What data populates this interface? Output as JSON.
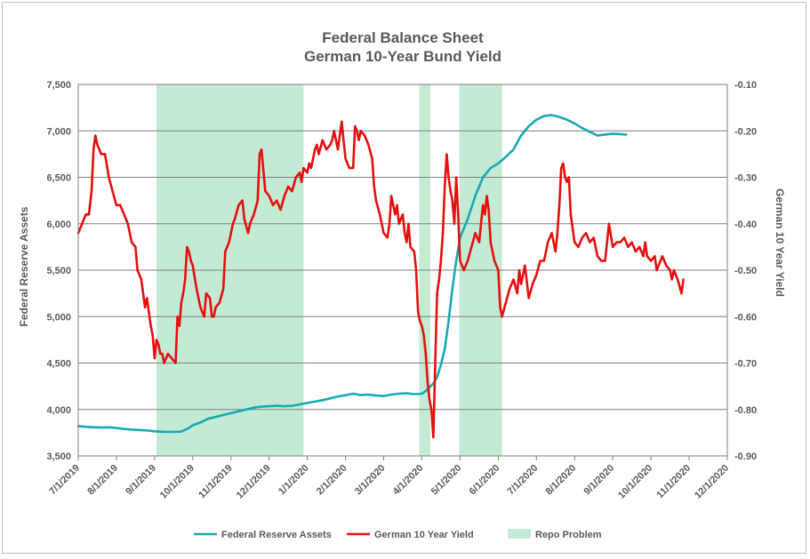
{
  "chart_data": {
    "type": "line",
    "title": "Federal Balance Sheet",
    "subtitle": "German 10-Year Bund Yield",
    "ylabel_left": "Federal Reserve Assets",
    "ylabel_right": "German 10 Year Yield",
    "x_tick_labels": [
      "7/1/2019",
      "8/1/2019",
      "9/1/2019",
      "10/1/2019",
      "11/1/2019",
      "12/1/2019",
      "1/1/2020",
      "2/1/2020",
      "3/1/2020",
      "4/1/2020",
      "5/1/2020",
      "6/1/2020",
      "7/1/2020",
      "8/1/2020",
      "9/1/2020",
      "10/1/2020",
      "11/1/2020",
      "12/1/2020"
    ],
    "x_axis": "months since 7/1/2019",
    "xlim": [
      0,
      17
    ],
    "ylim_left": [
      3500,
      7500
    ],
    "ylim_right": [
      -0.9,
      -0.1
    ],
    "y_left_ticks": [
      "3,500",
      "4,000",
      "4,500",
      "5,000",
      "5,500",
      "6,000",
      "6,500",
      "7,000",
      "7,500"
    ],
    "y_right_ticks": [
      "-0.90",
      "-0.80",
      "-0.70",
      "-0.60",
      "-0.50",
      "-0.40",
      "-0.30",
      "-0.20",
      "-0.10"
    ],
    "grid": "horizontal",
    "legend_position": "bottom",
    "shaded_regions": {
      "name": "Repo Problem",
      "color": "#c3ebd3",
      "ranges": [
        [
          2.05,
          5.9
        ],
        [
          8.93,
          9.22
        ],
        [
          9.98,
          11.1
        ]
      ]
    },
    "series": [
      {
        "name": "Federal Reserve Assets",
        "axis": "left",
        "color": "#17a9b5",
        "points": [
          [
            0,
            3820
          ],
          [
            0.3,
            3810
          ],
          [
            0.6,
            3805
          ],
          [
            0.8,
            3808
          ],
          [
            1.0,
            3800
          ],
          [
            1.2,
            3790
          ],
          [
            1.5,
            3780
          ],
          [
            1.8,
            3775
          ],
          [
            2.0,
            3765
          ],
          [
            2.2,
            3760
          ],
          [
            2.5,
            3758
          ],
          [
            2.7,
            3762
          ],
          [
            2.8,
            3780
          ],
          [
            2.9,
            3800
          ],
          [
            3.0,
            3830
          ],
          [
            3.2,
            3860
          ],
          [
            3.4,
            3900
          ],
          [
            3.6,
            3920
          ],
          [
            3.8,
            3940
          ],
          [
            4.0,
            3960
          ],
          [
            4.2,
            3980
          ],
          [
            4.4,
            4000
          ],
          [
            4.6,
            4020
          ],
          [
            4.8,
            4030
          ],
          [
            5.0,
            4035
          ],
          [
            5.2,
            4040
          ],
          [
            5.4,
            4035
          ],
          [
            5.6,
            4040
          ],
          [
            5.8,
            4055
          ],
          [
            6.0,
            4070
          ],
          [
            6.2,
            4085
          ],
          [
            6.4,
            4100
          ],
          [
            6.6,
            4120
          ],
          [
            6.8,
            4140
          ],
          [
            7.0,
            4155
          ],
          [
            7.2,
            4170
          ],
          [
            7.4,
            4155
          ],
          [
            7.6,
            4160
          ],
          [
            7.8,
            4150
          ],
          [
            8.0,
            4145
          ],
          [
            8.2,
            4160
          ],
          [
            8.4,
            4170
          ],
          [
            8.6,
            4175
          ],
          [
            8.8,
            4165
          ],
          [
            9.0,
            4170
          ],
          [
            9.1,
            4200
          ],
          [
            9.2,
            4240
          ],
          [
            9.3,
            4280
          ],
          [
            9.4,
            4350
          ],
          [
            9.5,
            4480
          ],
          [
            9.6,
            4650
          ],
          [
            9.7,
            4950
          ],
          [
            9.8,
            5300
          ],
          [
            9.9,
            5600
          ],
          [
            10.0,
            5850
          ],
          [
            10.2,
            6050
          ],
          [
            10.4,
            6300
          ],
          [
            10.6,
            6500
          ],
          [
            10.8,
            6600
          ],
          [
            11.0,
            6650
          ],
          [
            11.2,
            6720
          ],
          [
            11.4,
            6800
          ],
          [
            11.6,
            6950
          ],
          [
            11.8,
            7050
          ],
          [
            12.0,
            7120
          ],
          [
            12.2,
            7160
          ],
          [
            12.4,
            7170
          ],
          [
            12.6,
            7150
          ],
          [
            12.8,
            7120
          ],
          [
            13.0,
            7080
          ],
          [
            13.2,
            7030
          ],
          [
            13.4,
            6990
          ],
          [
            13.6,
            6950
          ],
          [
            13.8,
            6960
          ],
          [
            14.0,
            6970
          ],
          [
            14.2,
            6965
          ],
          [
            14.35,
            6960
          ]
        ]
      },
      {
        "name": "German 10 Year Yield",
        "axis": "right",
        "color": "#e50f0f",
        "points": [
          [
            0.0,
            -0.42
          ],
          [
            0.1,
            -0.4
          ],
          [
            0.2,
            -0.38
          ],
          [
            0.28,
            -0.38
          ],
          [
            0.35,
            -0.33
          ],
          [
            0.4,
            -0.24
          ],
          [
            0.45,
            -0.21
          ],
          [
            0.5,
            -0.23
          ],
          [
            0.6,
            -0.25
          ],
          [
            0.7,
            -0.25
          ],
          [
            0.8,
            -0.3
          ],
          [
            0.9,
            -0.33
          ],
          [
            1.0,
            -0.36
          ],
          [
            1.1,
            -0.36
          ],
          [
            1.2,
            -0.38
          ],
          [
            1.3,
            -0.4
          ],
          [
            1.4,
            -0.44
          ],
          [
            1.5,
            -0.45
          ],
          [
            1.55,
            -0.5
          ],
          [
            1.65,
            -0.52
          ],
          [
            1.7,
            -0.55
          ],
          [
            1.75,
            -0.58
          ],
          [
            1.8,
            -0.56
          ],
          [
            1.85,
            -0.59
          ],
          [
            1.9,
            -0.62
          ],
          [
            1.95,
            -0.64
          ],
          [
            2.0,
            -0.69
          ],
          [
            2.05,
            -0.65
          ],
          [
            2.1,
            -0.66
          ],
          [
            2.15,
            -0.68
          ],
          [
            2.2,
            -0.68
          ],
          [
            2.25,
            -0.7
          ],
          [
            2.3,
            -0.69
          ],
          [
            2.35,
            -0.68
          ],
          [
            2.45,
            -0.69
          ],
          [
            2.55,
            -0.7
          ],
          [
            2.6,
            -0.6
          ],
          [
            2.65,
            -0.62
          ],
          [
            2.7,
            -0.57
          ],
          [
            2.75,
            -0.55
          ],
          [
            2.8,
            -0.52
          ],
          [
            2.85,
            -0.45
          ],
          [
            2.9,
            -0.46
          ],
          [
            2.95,
            -0.48
          ],
          [
            3.0,
            -0.49
          ],
          [
            3.1,
            -0.54
          ],
          [
            3.2,
            -0.58
          ],
          [
            3.3,
            -0.6
          ],
          [
            3.35,
            -0.55
          ],
          [
            3.45,
            -0.56
          ],
          [
            3.5,
            -0.6
          ],
          [
            3.55,
            -0.6
          ],
          [
            3.6,
            -0.58
          ],
          [
            3.7,
            -0.57
          ],
          [
            3.8,
            -0.54
          ],
          [
            3.85,
            -0.46
          ],
          [
            3.95,
            -0.44
          ],
          [
            4.0,
            -0.42
          ],
          [
            4.05,
            -0.4
          ],
          [
            4.1,
            -0.39
          ],
          [
            4.2,
            -0.36
          ],
          [
            4.3,
            -0.35
          ],
          [
            4.35,
            -0.39
          ],
          [
            4.45,
            -0.42
          ],
          [
            4.5,
            -0.4
          ],
          [
            4.6,
            -0.38
          ],
          [
            4.7,
            -0.35
          ],
          [
            4.75,
            -0.25
          ],
          [
            4.8,
            -0.24
          ],
          [
            4.9,
            -0.33
          ],
          [
            5.0,
            -0.34
          ],
          [
            5.1,
            -0.36
          ],
          [
            5.2,
            -0.35
          ],
          [
            5.3,
            -0.37
          ],
          [
            5.4,
            -0.34
          ],
          [
            5.5,
            -0.32
          ],
          [
            5.6,
            -0.33
          ],
          [
            5.7,
            -0.3
          ],
          [
            5.8,
            -0.29
          ],
          [
            5.85,
            -0.31
          ],
          [
            5.9,
            -0.28
          ],
          [
            6.0,
            -0.29
          ],
          [
            6.05,
            -0.27
          ],
          [
            6.1,
            -0.28
          ],
          [
            6.2,
            -0.24
          ],
          [
            6.25,
            -0.23
          ],
          [
            6.3,
            -0.25
          ],
          [
            6.4,
            -0.22
          ],
          [
            6.5,
            -0.24
          ],
          [
            6.6,
            -0.23
          ],
          [
            6.65,
            -0.22
          ],
          [
            6.7,
            -0.2
          ],
          [
            6.75,
            -0.22
          ],
          [
            6.8,
            -0.24
          ],
          [
            6.9,
            -0.18
          ],
          [
            6.95,
            -0.22
          ],
          [
            7.0,
            -0.26
          ],
          [
            7.1,
            -0.28
          ],
          [
            7.2,
            -0.28
          ],
          [
            7.25,
            -0.19
          ],
          [
            7.3,
            -0.2
          ],
          [
            7.35,
            -0.22
          ],
          [
            7.4,
            -0.2
          ],
          [
            7.5,
            -0.21
          ],
          [
            7.6,
            -0.23
          ],
          [
            7.7,
            -0.26
          ],
          [
            7.75,
            -0.32
          ],
          [
            7.8,
            -0.35
          ],
          [
            7.9,
            -0.38
          ],
          [
            8.0,
            -0.42
          ],
          [
            8.1,
            -0.43
          ],
          [
            8.15,
            -0.4
          ],
          [
            8.2,
            -0.34
          ],
          [
            8.3,
            -0.38
          ],
          [
            8.35,
            -0.36
          ],
          [
            8.4,
            -0.4
          ],
          [
            8.5,
            -0.38
          ],
          [
            8.55,
            -0.42
          ],
          [
            8.6,
            -0.44
          ],
          [
            8.65,
            -0.4
          ],
          [
            8.7,
            -0.45
          ],
          [
            8.8,
            -0.46
          ],
          [
            8.85,
            -0.5
          ],
          [
            8.9,
            -0.59
          ],
          [
            8.95,
            -0.61
          ],
          [
            9.0,
            -0.62
          ],
          [
            9.05,
            -0.64
          ],
          [
            9.1,
            -0.68
          ],
          [
            9.15,
            -0.74
          ],
          [
            9.2,
            -0.78
          ],
          [
            9.25,
            -0.8
          ],
          [
            9.3,
            -0.86
          ],
          [
            9.35,
            -0.7
          ],
          [
            9.4,
            -0.55
          ],
          [
            9.45,
            -0.52
          ],
          [
            9.5,
            -0.48
          ],
          [
            9.55,
            -0.42
          ],
          [
            9.6,
            -0.32
          ],
          [
            9.65,
            -0.25
          ],
          [
            9.7,
            -0.3
          ],
          [
            9.75,
            -0.33
          ],
          [
            9.8,
            -0.35
          ],
          [
            9.85,
            -0.4
          ],
          [
            9.9,
            -0.3
          ],
          [
            9.95,
            -0.38
          ],
          [
            10.0,
            -0.48
          ],
          [
            10.1,
            -0.5
          ],
          [
            10.2,
            -0.48
          ],
          [
            10.3,
            -0.45
          ],
          [
            10.4,
            -0.42
          ],
          [
            10.5,
            -0.44
          ],
          [
            10.55,
            -0.4
          ],
          [
            10.6,
            -0.36
          ],
          [
            10.65,
            -0.38
          ],
          [
            10.7,
            -0.34
          ],
          [
            10.75,
            -0.37
          ],
          [
            10.8,
            -0.44
          ],
          [
            10.9,
            -0.48
          ],
          [
            11.0,
            -0.5
          ],
          [
            11.05,
            -0.58
          ],
          [
            11.1,
            -0.6
          ],
          [
            11.2,
            -0.57
          ],
          [
            11.3,
            -0.54
          ],
          [
            11.4,
            -0.52
          ],
          [
            11.5,
            -0.55
          ],
          [
            11.55,
            -0.5
          ],
          [
            11.6,
            -0.53
          ],
          [
            11.7,
            -0.49
          ],
          [
            11.8,
            -0.56
          ],
          [
            11.9,
            -0.53
          ],
          [
            12.0,
            -0.51
          ],
          [
            12.1,
            -0.48
          ],
          [
            12.2,
            -0.48
          ],
          [
            12.3,
            -0.44
          ],
          [
            12.4,
            -0.42
          ],
          [
            12.5,
            -0.46
          ],
          [
            12.55,
            -0.42
          ],
          [
            12.6,
            -0.36
          ],
          [
            12.65,
            -0.28
          ],
          [
            12.7,
            -0.27
          ],
          [
            12.75,
            -0.3
          ],
          [
            12.8,
            -0.31
          ],
          [
            12.85,
            -0.3
          ],
          [
            12.9,
            -0.38
          ],
          [
            13.0,
            -0.44
          ],
          [
            13.1,
            -0.45
          ],
          [
            13.2,
            -0.43
          ],
          [
            13.3,
            -0.42
          ],
          [
            13.4,
            -0.44
          ],
          [
            13.5,
            -0.43
          ],
          [
            13.6,
            -0.47
          ],
          [
            13.7,
            -0.48
          ],
          [
            13.8,
            -0.48
          ],
          [
            13.9,
            -0.4
          ],
          [
            14.0,
            -0.45
          ],
          [
            14.1,
            -0.44
          ],
          [
            14.2,
            -0.44
          ],
          [
            14.3,
            -0.43
          ],
          [
            14.4,
            -0.45
          ],
          [
            14.5,
            -0.44
          ],
          [
            14.6,
            -0.46
          ],
          [
            14.7,
            -0.45
          ],
          [
            14.8,
            -0.47
          ],
          [
            14.85,
            -0.44
          ],
          [
            14.9,
            -0.47
          ],
          [
            15.0,
            -0.48
          ],
          [
            15.1,
            -0.47
          ],
          [
            15.15,
            -0.5
          ],
          [
            15.2,
            -0.49
          ],
          [
            15.3,
            -0.47
          ],
          [
            15.4,
            -0.49
          ],
          [
            15.5,
            -0.5
          ],
          [
            15.55,
            -0.52
          ],
          [
            15.6,
            -0.5
          ],
          [
            15.7,
            -0.52
          ],
          [
            15.8,
            -0.55
          ],
          [
            15.85,
            -0.52
          ]
        ]
      }
    ],
    "legend": [
      {
        "label": "Federal Reserve Assets",
        "color": "#17a9b5",
        "kind": "line"
      },
      {
        "label": "German 10 Year Yield",
        "color": "#e50f0f",
        "kind": "line"
      },
      {
        "label": "Repo Problem",
        "color": "#c3ebd3",
        "kind": "box"
      }
    ]
  }
}
